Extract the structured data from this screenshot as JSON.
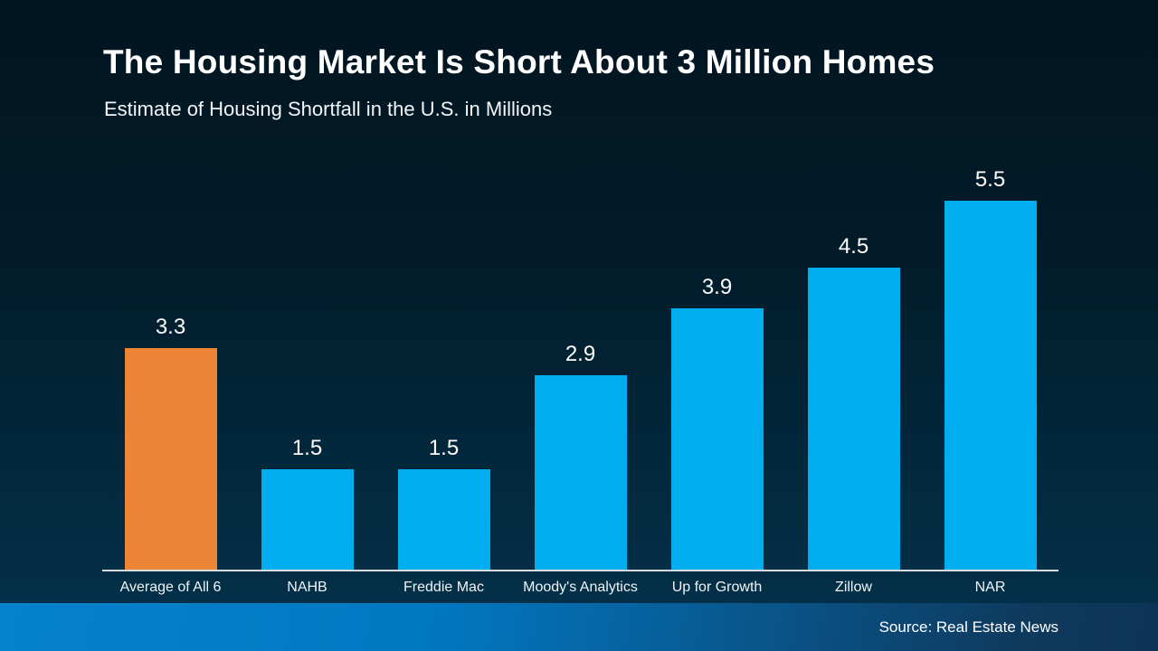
{
  "header": {
    "title": "The Housing Market Is Short About 3 Million Homes",
    "subtitle": "Estimate of Housing Shortfall in the U.S. in Millions"
  },
  "footer": {
    "source": "Source: Real Estate News"
  },
  "colors": {
    "background_top": "#011520",
    "background_bottom": "#04324b",
    "bar_blue": "#00aeef",
    "bar_orange": "#ec8536",
    "axis_line": "#d9dde0",
    "text": "#ffffff",
    "footer_gradient_left": "#0482ce",
    "footer_gradient_right": "#0c3456"
  },
  "chart_data": {
    "type": "bar",
    "title": "The Housing Market Is Short About 3 Million Homes",
    "subtitle": "Estimate of Housing Shortfall in the U.S. in Millions",
    "categories": [
      "Average of All 6",
      "NAHB",
      "Freddie Mac",
      "Moody's Analytics",
      "Up for Growth",
      "Zillow",
      "NAR"
    ],
    "values": [
      3.3,
      1.5,
      1.5,
      2.9,
      3.9,
      4.5,
      5.5
    ],
    "data_labels": [
      "3.3",
      "1.5",
      "1.5",
      "2.9",
      "3.9",
      "4.5",
      "5.5"
    ],
    "bar_colors": [
      "#ec8536",
      "#00aeef",
      "#00aeef",
      "#00aeef",
      "#00aeef",
      "#00aeef",
      "#00aeef"
    ],
    "xlabel": "",
    "ylabel": "",
    "ylim": [
      0,
      5.5
    ],
    "grid": false,
    "legend": false,
    "value_labels_position": "above-bars",
    "source": "Source: Real Estate News"
  }
}
